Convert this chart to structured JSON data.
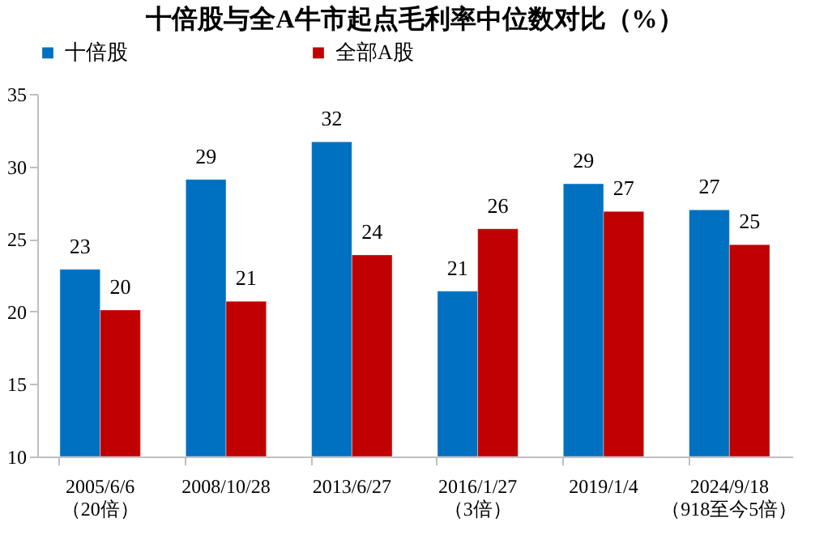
{
  "chart_data": {
    "type": "bar",
    "title": "十倍股与全A牛市起点毛利率中位数对比（%）",
    "categories": [
      "2005/6/6\n（20倍）",
      "2008/10/28",
      "2013/6/27",
      "2016/1/27\n（3倍）",
      "2019/1/4",
      "2024/9/18\n（918至今5倍）"
    ],
    "series": [
      {
        "name": "十倍股",
        "color": "#0070c0",
        "values": [
          22.9,
          29.1,
          31.7,
          21.4,
          28.8,
          27.0
        ],
        "value_labels": [
          "23",
          "29",
          "32",
          "21",
          "29",
          "27"
        ]
      },
      {
        "name": "全部A股",
        "color": "#c00000",
        "values": [
          20.1,
          20.7,
          23.9,
          25.7,
          26.9,
          24.6
        ],
        "value_labels": [
          "20",
          "21",
          "24",
          "26",
          "27",
          "25"
        ]
      }
    ],
    "ylim": [
      10,
      35
    ],
    "yticks": [
      10,
      15,
      20,
      25,
      30,
      35
    ],
    "grid": false,
    "legend": "top"
  }
}
